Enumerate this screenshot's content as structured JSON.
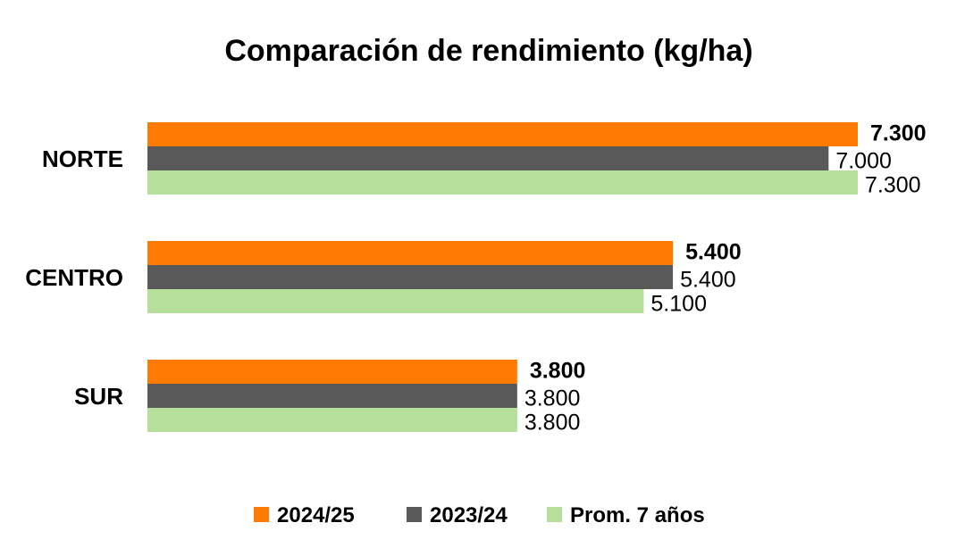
{
  "chart_data": {
    "type": "bar",
    "orientation": "horizontal",
    "title": "Comparación de rendimiento (kg/ha)",
    "categories": [
      "NORTE",
      "CENTRO",
      "SUR"
    ],
    "series": [
      {
        "name": "2024/25",
        "color": "#FF7A00",
        "values": [
          7300,
          5400,
          3800
        ],
        "labels": [
          "7.300",
          "5.400",
          "3.800"
        ],
        "label_bold": true
      },
      {
        "name": "2023/24",
        "color": "#595959",
        "values": [
          7000,
          5400,
          3800
        ],
        "labels": [
          "7.000",
          "5.400",
          "3.800"
        ],
        "label_bold": false
      },
      {
        "name": "Prom. 7 años",
        "color": "#B5DF9A",
        "values": [
          7300,
          5100,
          3800
        ],
        "labels": [
          "7.300",
          "5.100",
          "3.800"
        ],
        "label_bold": false
      }
    ],
    "xlim": [
      0,
      7300
    ],
    "grid": false,
    "legend_position": "bottom"
  }
}
